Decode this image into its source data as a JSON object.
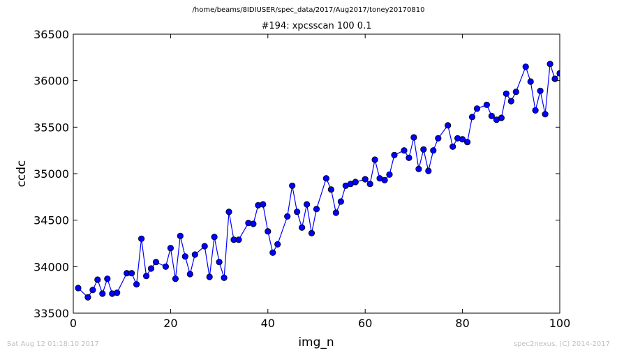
{
  "header": {
    "suptitle": "/home/beams/8IDIUSER/spec_data/2017/Aug2017/toney20170810",
    "title": "#194: xpcsscan 100 0.1"
  },
  "footer": {
    "timestamp": "Sat Aug 12 01:18:10 2017",
    "credit": "spec2nexus, (C) 2014-2017"
  },
  "chart_data": {
    "type": "line",
    "title": "#194: xpcsscan 100 0.1",
    "xlabel": "img_n",
    "ylabel": "ccdc",
    "xlim": [
      0,
      100
    ],
    "ylim": [
      33500,
      36500
    ],
    "xticks": [
      "0",
      "20",
      "40",
      "60",
      "80",
      "100"
    ],
    "yticks": [
      "33500",
      "34000",
      "34500",
      "35000",
      "35500",
      "36000",
      "36500"
    ],
    "grid": false,
    "legend": "none",
    "series": [
      {
        "color": "#0000ff",
        "marker": "circle",
        "x": [
          1,
          3,
          4,
          5,
          6,
          7,
          8,
          9,
          11,
          12,
          13,
          14,
          15,
          16,
          17,
          19,
          20,
          21,
          22,
          23,
          24,
          25,
          27,
          28,
          29,
          30,
          31,
          32,
          33,
          34,
          36,
          37,
          38,
          39,
          40,
          41,
          42,
          44,
          45,
          46,
          47,
          48,
          49,
          50,
          52,
          53,
          54,
          55,
          56,
          57,
          58,
          60,
          61,
          62,
          63,
          64,
          65,
          66,
          68,
          69,
          70,
          71,
          72,
          73,
          74,
          75,
          77,
          78,
          79,
          80,
          81,
          82,
          83,
          85,
          86,
          87,
          88,
          89,
          90,
          91,
          93,
          94,
          95,
          96,
          97,
          98,
          99,
          100
        ],
        "y": [
          33770,
          33670,
          33750,
          33860,
          33710,
          33870,
          33710,
          33720,
          33930,
          33930,
          33810,
          34300,
          33900,
          33980,
          34050,
          34000,
          34200,
          33870,
          34330,
          34110,
          33920,
          34130,
          34220,
          33890,
          34320,
          34050,
          33880,
          34590,
          34290,
          34290,
          34470,
          34460,
          34660,
          34670,
          34380,
          34150,
          34240,
          34540,
          34870,
          34590,
          34420,
          34670,
          34360,
          34620,
          34950,
          34830,
          34580,
          34700,
          34870,
          34890,
          34910,
          34940,
          34890,
          35150,
          34950,
          34930,
          34990,
          35200,
          35250,
          35170,
          35390,
          35050,
          35260,
          35030,
          35250,
          35380,
          35520,
          35290,
          35380,
          35370,
          35340,
          35610,
          35700,
          35740,
          35620,
          35580,
          35600,
          35860,
          35780,
          35880,
          36150,
          35990,
          35680,
          35890,
          35640,
          36180,
          36020,
          36080
        ]
      }
    ]
  }
}
